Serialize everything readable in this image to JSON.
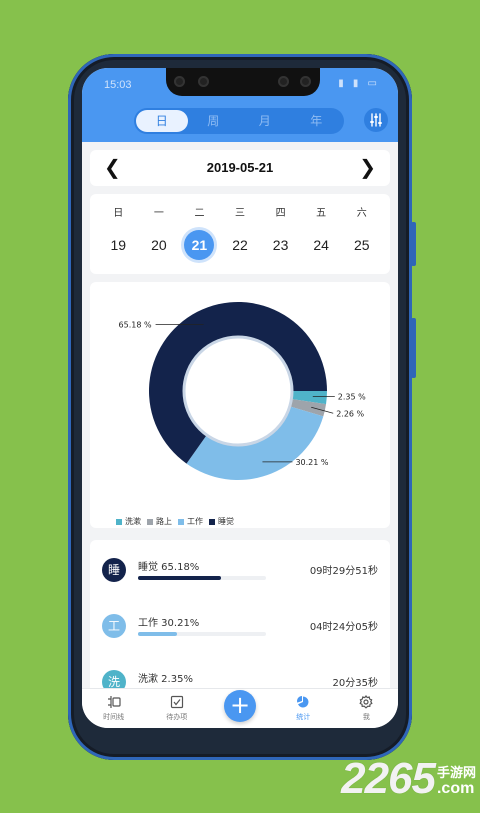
{
  "status": {
    "time": "15:03",
    "icons": "▮ ▮ ▭"
  },
  "segment": {
    "tabs": [
      "日",
      "周",
      "月",
      "年"
    ],
    "active": 0
  },
  "date_nav": {
    "prev": "❮",
    "title": "2019-05-21",
    "next": "❯"
  },
  "week": {
    "labels": [
      "日",
      "一",
      "二",
      "三",
      "四",
      "五",
      "六"
    ],
    "days": [
      "19",
      "20",
      "21",
      "22",
      "23",
      "24",
      "25"
    ],
    "active_index": 2
  },
  "chart_data": {
    "type": "pie",
    "title": "",
    "categories": [
      "洗漱",
      "路上",
      "工作",
      "睡觉"
    ],
    "values": [
      2.35,
      2.26,
      30.21,
      65.18
    ],
    "labels": [
      "2.35 %",
      "2.26 %",
      "30.21 %",
      "65.18 %"
    ],
    "colors": [
      "#4fb3c9",
      "#9ea4ab",
      "#7fbde9",
      "#13234b"
    ],
    "legend_position": "bottom-left"
  },
  "list": {
    "items": [
      {
        "avatar": "睡",
        "title": "睡觉 65.18%",
        "duration": "09时29分51秒",
        "percent": 65.18,
        "color": "#13234b"
      },
      {
        "avatar": "工",
        "title": "工作 30.21%",
        "duration": "04时24分05秒",
        "percent": 30.21,
        "color": "#7fbde9"
      },
      {
        "avatar": "洗",
        "title": "洗漱 2.35%",
        "duration": "20分35秒",
        "percent": 2.35,
        "color": "#4fb3c9"
      }
    ]
  },
  "tabbar": {
    "items": [
      {
        "label": "时间线",
        "icon": "timeline-icon"
      },
      {
        "label": "待办项",
        "icon": "todo-icon"
      },
      {
        "label": "",
        "icon": "add-icon"
      },
      {
        "label": "统计",
        "icon": "pie-chart-icon"
      },
      {
        "label": "我",
        "icon": "gear-icon"
      }
    ],
    "active": 3,
    "fab": "+"
  },
  "watermark": {
    "number": "2265",
    "cn": "手游网",
    "domain": ".com"
  }
}
